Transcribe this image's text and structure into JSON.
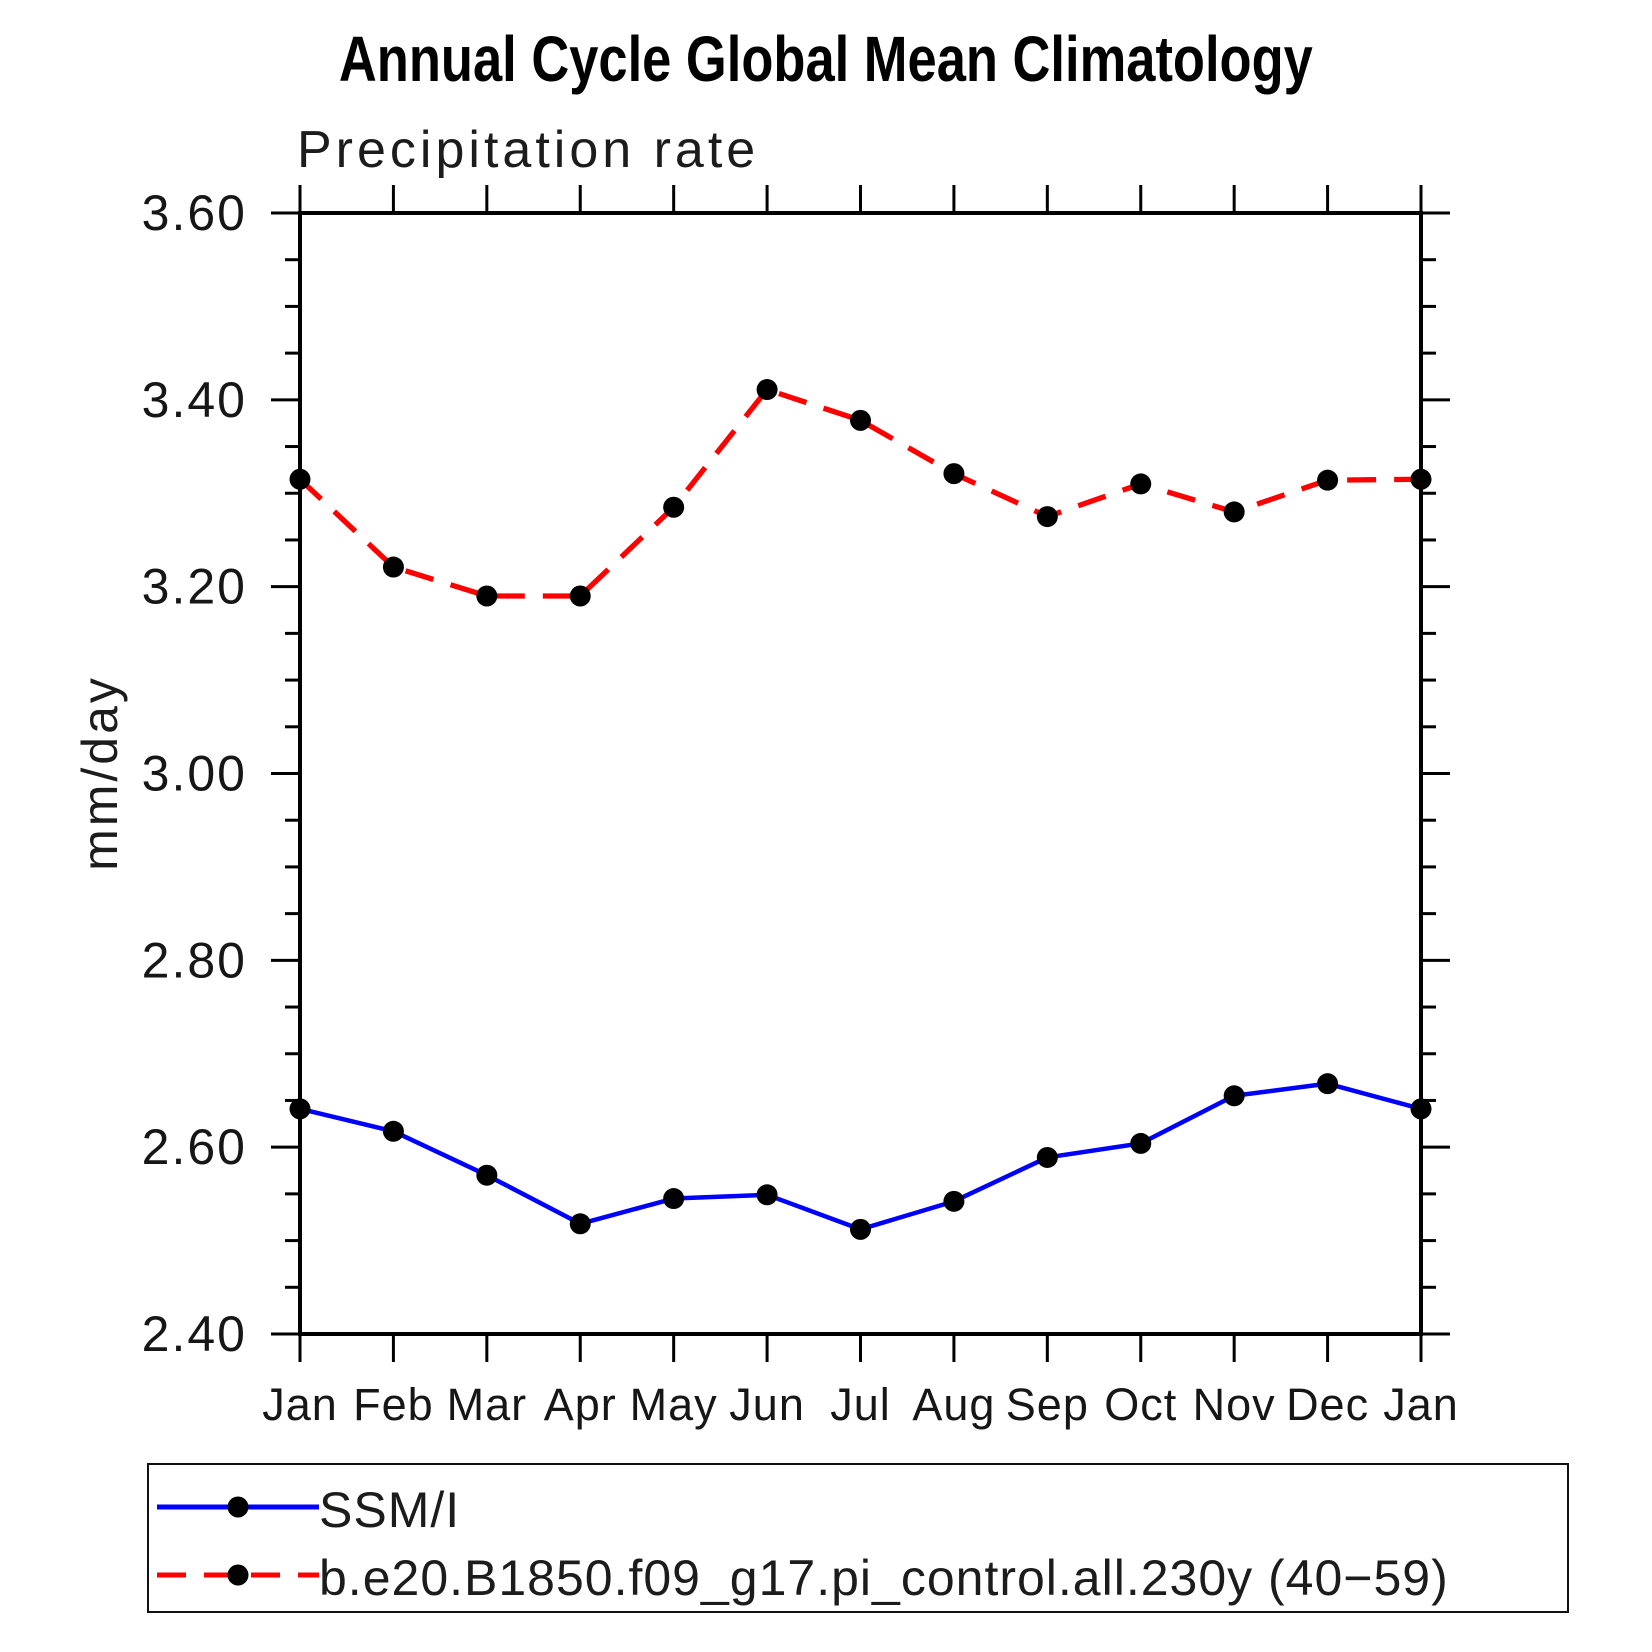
{
  "title": "Annual Cycle Global Mean Climatology",
  "chart_data": {
    "type": "line",
    "title": "Annual Cycle Global Mean Climatology",
    "subtitle": "Precipitation rate",
    "ylabel": "mm/day",
    "xlabel": "",
    "categories": [
      "Jan",
      "Feb",
      "Mar",
      "Apr",
      "May",
      "Jun",
      "Jul",
      "Aug",
      "Sep",
      "Oct",
      "Nov",
      "Dec",
      "Jan"
    ],
    "ylim": [
      2.4,
      3.6
    ],
    "y_major_step": 0.2,
    "y_minor_step": 0.05,
    "y_tick_labels": [
      "3.60",
      "3.40",
      "3.20",
      "3.00",
      "2.80",
      "2.60",
      "2.40"
    ],
    "grid": false,
    "legend_position": "bottom-box",
    "series": [
      {
        "name": "SSM/I",
        "color": "#0000ff",
        "line_style": "solid",
        "marker": "filled-circle",
        "marker_color": "#000000",
        "values": [
          2.641,
          2.617,
          2.57,
          2.518,
          2.545,
          2.549,
          2.512,
          2.542,
          2.589,
          2.604,
          2.655,
          2.668,
          2.641
        ]
      },
      {
        "name": "b.e20.B1850.f09_g17.pi_control.all.230y (40−59)",
        "color": "#ff0000",
        "line_style": "dashed",
        "marker": "filled-circle",
        "marker_color": "#000000",
        "values": [
          3.315,
          3.221,
          3.19,
          3.19,
          3.285,
          3.411,
          3.378,
          3.321,
          3.275,
          3.31,
          3.28,
          3.314,
          3.315
        ]
      }
    ]
  },
  "legend": {
    "items": [
      {
        "label": "SSM/I"
      },
      {
        "label": "b.e20.B1850.f09_g17.pi_control.all.230y (40−59)"
      }
    ]
  },
  "colors": {
    "ssmi_line": "#0000ff",
    "model_line": "#ff0000",
    "marker": "#000000",
    "axis": "#000000",
    "background": "#ffffff"
  }
}
